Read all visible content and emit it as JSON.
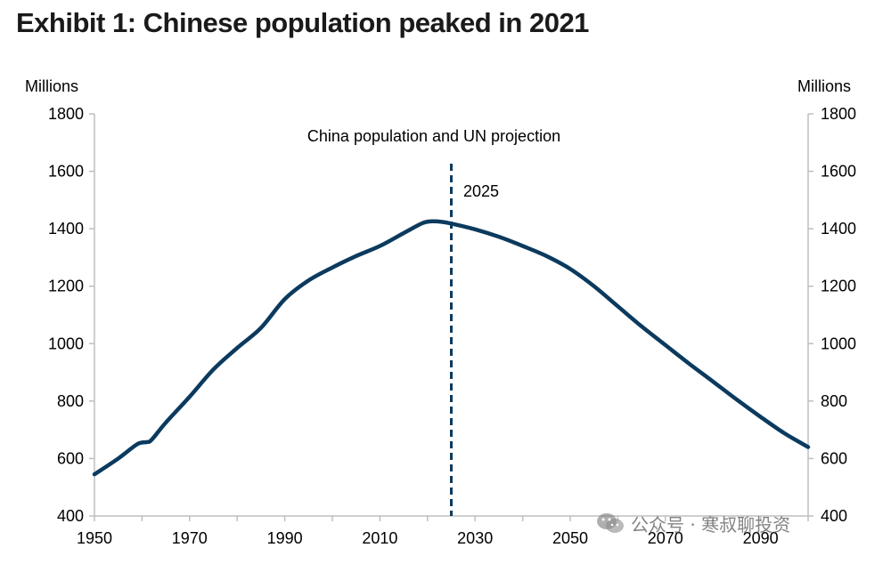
{
  "title": "Exhibit 1: Chinese population peaked in 2021",
  "watermark": "公众号 · 寒叔聊投资",
  "colors": {
    "line": "#0b3a5e",
    "axis": "#bfbfbf",
    "text": "#000000"
  },
  "chart_data": {
    "type": "line",
    "title": "China population and UN projection",
    "ylabel_left": "Millions",
    "ylabel_right": "Millions",
    "xlim": [
      1950,
      2100
    ],
    "ylim": [
      400,
      1800
    ],
    "yticks": [
      400,
      600,
      800,
      1000,
      1200,
      1400,
      1600,
      1800
    ],
    "xticks": [
      1950,
      1970,
      1990,
      2010,
      2030,
      2050,
      2070,
      2090
    ],
    "grid": false,
    "marker_line": {
      "x": 2025,
      "label": "2025",
      "style": "dashed"
    },
    "series": [
      {
        "x": [
          1950,
          1955,
          1959,
          1961,
          1962,
          1965,
          1970,
          1975,
          1980,
          1985,
          1990,
          1995,
          2000,
          2005,
          2010,
          2015,
          2019,
          2021,
          2023,
          2025,
          2030,
          2035,
          2040,
          2045,
          2050,
          2055,
          2060,
          2065,
          2070,
          2075,
          2080,
          2085,
          2090,
          2095,
          2100
        ],
        "values": [
          545,
          600,
          650,
          657,
          665,
          725,
          815,
          910,
          985,
          1055,
          1155,
          1220,
          1265,
          1305,
          1340,
          1385,
          1420,
          1426,
          1424,
          1418,
          1398,
          1372,
          1340,
          1305,
          1260,
          1200,
          1130,
          1060,
          995,
          930,
          868,
          805,
          745,
          688,
          640
        ]
      }
    ]
  }
}
